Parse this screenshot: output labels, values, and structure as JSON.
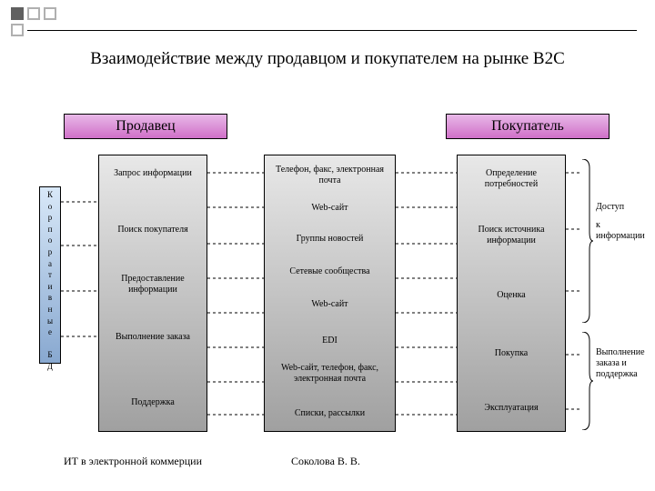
{
  "bullets": {
    "color_empty": "#ffffff",
    "color_filled": "#606060",
    "border": "#b0b0b0"
  },
  "title": "Взаимодействие между продавцом и покупателем на рынке B2C",
  "heads": {
    "seller": {
      "label": "Продавец",
      "bg_top": "#e8b8e8",
      "bg_bot": "#d070c8"
    },
    "buyer": {
      "label": "Покупатель",
      "bg_top": "#e8b8e8",
      "bg_bot": "#d070c8"
    }
  },
  "vbar": {
    "label": "Корпоративные БД",
    "bg_top": "#d8e8f8",
    "bg_bot": "#88a8d0"
  },
  "columns": {
    "seller": {
      "bg_top": "#e8e8e8",
      "bg_bot": "#a0a0a0",
      "items": [
        "Запрос информации",
        "Поиск покупателя",
        "Предоставление информации",
        "Выполнение заказа",
        "Поддержка"
      ]
    },
    "middle": {
      "bg_top": "#e8e8e8",
      "bg_bot": "#a0a0a0",
      "items": [
        "Телефон, факс, электронная почта",
        "Web-сайт",
        "Группы новостей",
        "Сетевые сообщества",
        "Web-сайт",
        "EDI",
        "Web-сайт, телефон, факс, электронная почта",
        "Списки, рассылки"
      ]
    },
    "buyer": {
      "bg_top": "#e8e8e8",
      "bg_bot": "#a0a0a0",
      "items": [
        "Определение потребностей",
        "Поиск источника информации",
        "Оценка",
        "Покупка",
        "Эксплуатация"
      ]
    }
  },
  "side_labels": [
    "Доступ",
    "к информации",
    "Выполнение заказа и поддержка"
  ],
  "footer": {
    "left": "ИТ в электронной коммерции",
    "right": "Соколова В. В."
  }
}
